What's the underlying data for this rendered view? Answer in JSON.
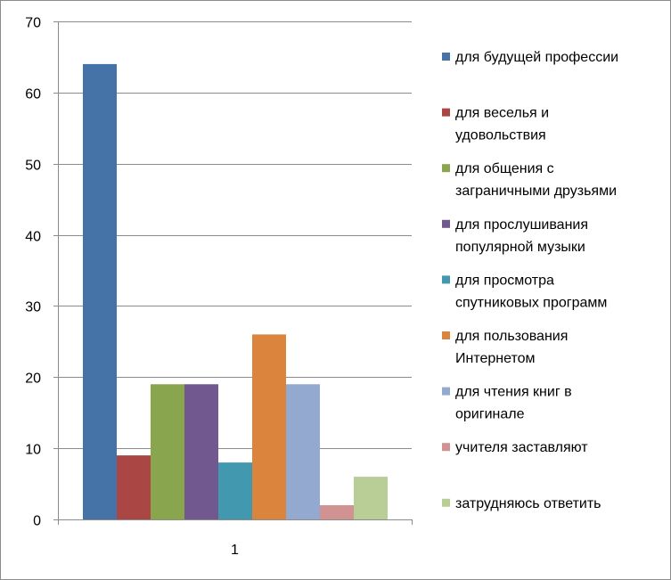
{
  "chart_data": {
    "type": "bar",
    "categories": [
      "1"
    ],
    "ylim": [
      0,
      70
    ],
    "yticks": [
      0,
      10,
      20,
      30,
      40,
      50,
      60,
      70
    ],
    "grid": true,
    "legend_position": "right",
    "series": [
      {
        "name": "для будущей профессии",
        "legend_lines": [
          "для будущей профессии"
        ],
        "values": [
          64
        ],
        "color": "#4572A7"
      },
      {
        "name": "для веселья и удовольствия",
        "legend_lines": [
          "для веселья и",
          "удовольствия"
        ],
        "values": [
          9
        ],
        "color": "#AA4643"
      },
      {
        "name": "для общения с заграничными друзьями",
        "legend_lines": [
          "для общения с",
          "заграничными друзьями"
        ],
        "values": [
          19
        ],
        "color": "#89A54E"
      },
      {
        "name": "для прослушивания популярной музыки",
        "legend_lines": [
          "для прослушивания",
          "популярной музыки"
        ],
        "values": [
          19
        ],
        "color": "#71588F"
      },
      {
        "name": "для просмотра спутниковых программ",
        "legend_lines": [
          "для просмотра",
          "спутниковых программ"
        ],
        "values": [
          8
        ],
        "color": "#4198AF"
      },
      {
        "name": "для пользования Интернетом",
        "legend_lines": [
          "для пользования",
          "Интернетом"
        ],
        "values": [
          26
        ],
        "color": "#DB843D"
      },
      {
        "name": "для чтения книг в оригинале",
        "legend_lines": [
          "для чтения книг в",
          "оригинале"
        ],
        "values": [
          19
        ],
        "color": "#93A9CF"
      },
      {
        "name": "учителя заставляют",
        "legend_lines": [
          "учителя заставляют"
        ],
        "values": [
          2
        ],
        "color": "#D19392"
      },
      {
        "name": "затрудняюсь ответить",
        "legend_lines": [
          "затрудняюсь ответить"
        ],
        "values": [
          6
        ],
        "color": "#B9CD96"
      }
    ]
  }
}
